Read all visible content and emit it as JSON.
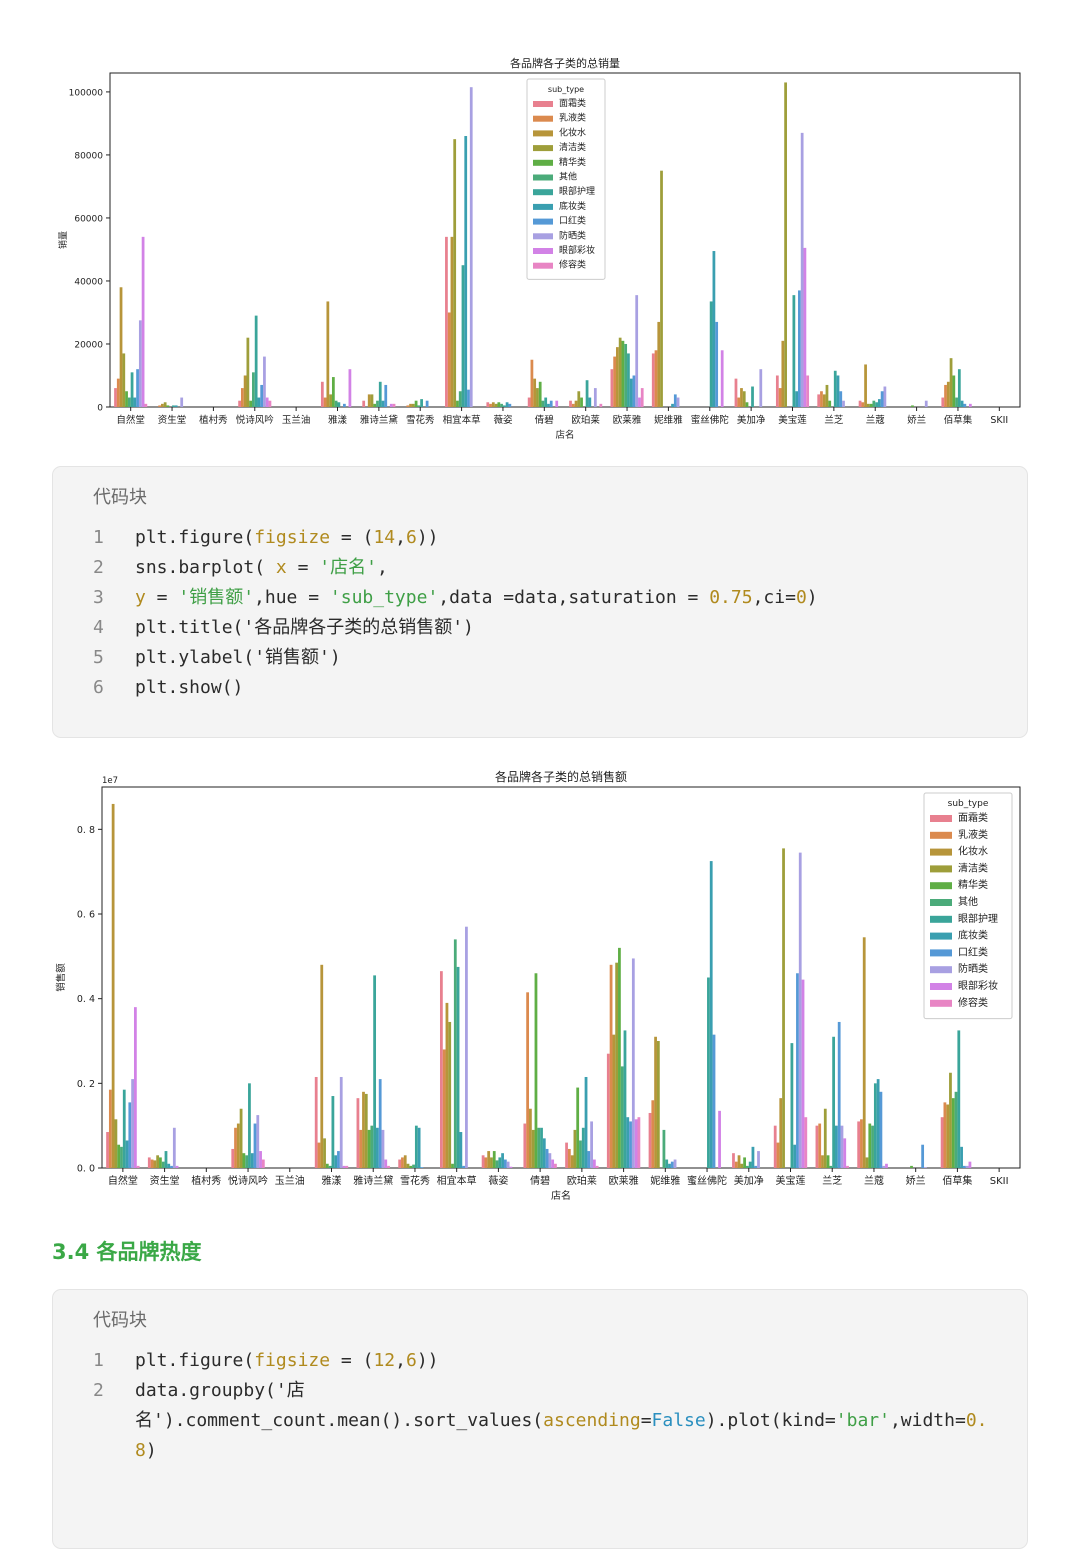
{
  "chart_data": [
    {
      "type": "bar",
      "title": "各品牌各子类的总销量",
      "xlabel": "店名",
      "ylabel": "销量",
      "ylim": [
        0,
        106000
      ],
      "yticks": [
        0,
        20000,
        40000,
        60000,
        80000,
        100000
      ],
      "ytick_labels": [
        "0",
        "20000",
        "40000",
        "60000",
        "80000",
        "100000"
      ],
      "scale_label": "",
      "legend_title": "sub_type",
      "legend_position": "top-center",
      "categories": [
        "自然堂",
        "资生堂",
        "植村秀",
        "悦诗风吟",
        "玉兰油",
        "雅漾",
        "雅诗兰黛",
        "雪花秀",
        "相宜本草",
        "薇姿",
        "倩碧",
        "欧珀莱",
        "欧莱雅",
        "妮维雅",
        "蜜丝佛陀",
        "美加净",
        "美宝莲",
        "兰芝",
        "兰蔻",
        "娇兰",
        "佰草集",
        "SKII"
      ],
      "series": [
        {
          "name": "面霜类",
          "color": "#e8808f",
          "values": [
            6000,
            0,
            0,
            2000,
            0,
            8000,
            2000,
            0,
            54000,
            1500,
            3000,
            2000,
            12000,
            17000,
            0,
            9000,
            10000,
            4000,
            2000,
            0,
            3000,
            0
          ]
        },
        {
          "name": "乳液类",
          "color": "#db8a4e",
          "values": [
            9000,
            500,
            0,
            6000,
            0,
            3000,
            0,
            500,
            30000,
            1000,
            15000,
            1000,
            16000,
            18000,
            0,
            3000,
            6000,
            5000,
            1500,
            0,
            7000,
            0
          ]
        },
        {
          "name": "化妆水",
          "color": "#b7953a",
          "values": [
            38000,
            1000,
            0,
            10000,
            0,
            33500,
            4000,
            1000,
            54000,
            1500,
            9000,
            2000,
            19000,
            27000,
            0,
            6000,
            21000,
            4000,
            13500,
            0,
            8000,
            0
          ]
        },
        {
          "name": "清洁类",
          "color": "#9e9e3a",
          "values": [
            17000,
            1500,
            0,
            22000,
            0,
            4000,
            4000,
            1000,
            85000,
            1000,
            6000,
            5000,
            22000,
            75000,
            0,
            5000,
            103000,
            7000,
            1000,
            0,
            15500,
            0
          ]
        },
        {
          "name": "精华类",
          "color": "#5fae45",
          "values": [
            5000,
            500,
            0,
            2000,
            0,
            9500,
            1000,
            2000,
            2000,
            1500,
            8000,
            3000,
            21000,
            0,
            0,
            1500,
            0,
            2000,
            1000,
            500,
            10000,
            0
          ]
        },
        {
          "name": "其他",
          "color": "#4bab7a",
          "values": [
            3000,
            0,
            0,
            11000,
            0,
            2000,
            2000,
            500,
            5000,
            1000,
            2000,
            0,
            20000,
            0,
            0,
            0,
            0,
            0,
            2000,
            0,
            3000,
            0
          ]
        },
        {
          "name": "眼部护理",
          "color": "#3aa59a",
          "values": [
            11000,
            500,
            0,
            29000,
            0,
            1500,
            8000,
            2500,
            45000,
            500,
            3000,
            8500,
            17000,
            0,
            33500,
            6500,
            35500,
            11500,
            1500,
            0,
            12000,
            0
          ]
        },
        {
          "name": "底妆类",
          "color": "#3a9fb0",
          "values": [
            3000,
            500,
            0,
            3000,
            0,
            0,
            2000,
            0,
            86000,
            1500,
            1000,
            3000,
            9000,
            1000,
            49500,
            0,
            5000,
            10000,
            2500,
            0,
            2000,
            0
          ]
        },
        {
          "name": "口红类",
          "color": "#5599d6",
          "values": [
            12000,
            0,
            0,
            7000,
            0,
            1000,
            7000,
            2000,
            5500,
            1000,
            2000,
            0,
            10000,
            4000,
            27000,
            0,
            37000,
            5000,
            5000,
            0,
            1000,
            0
          ]
        },
        {
          "name": "防晒类",
          "color": "#a8a0e2",
          "values": [
            27500,
            3000,
            0,
            16000,
            0,
            0,
            0,
            0,
            101500,
            0,
            0,
            6000,
            35500,
            3000,
            0,
            12000,
            87000,
            2000,
            6500,
            2000,
            0,
            0
          ]
        },
        {
          "name": "眼部彩妆",
          "color": "#d282e6",
          "values": [
            54000,
            0,
            0,
            3000,
            0,
            12000,
            1000,
            0,
            0,
            0,
            2000,
            0,
            3000,
            0,
            18000,
            0,
            50500,
            0,
            0,
            0,
            1000,
            0
          ]
        },
        {
          "name": "修容类",
          "color": "#e885c4",
          "values": [
            1000,
            0,
            0,
            2000,
            0,
            0,
            1000,
            0,
            0,
            0,
            0,
            1000,
            6000,
            0,
            0,
            0,
            10000,
            0,
            0,
            0,
            0,
            0
          ]
        }
      ]
    },
    {
      "type": "bar",
      "title": "各品牌各子类的总销售额",
      "xlabel": "店名",
      "ylabel": "销售额",
      "ylim": [
        0,
        0.9
      ],
      "yticks": [
        0,
        0.2,
        0.4,
        0.6,
        0.8
      ],
      "ytick_labels": [
        "0. 0",
        "0. 2",
        "0. 4",
        "0. 6",
        "0. 8"
      ],
      "scale_label": "1e7",
      "legend_title": "sub_type",
      "legend_position": "top-right",
      "categories": [
        "自然堂",
        "资生堂",
        "植村秀",
        "悦诗风吟",
        "玉兰油",
        "雅漾",
        "雅诗兰黛",
        "雪花秀",
        "相宜本草",
        "薇姿",
        "倩碧",
        "欧珀莱",
        "欧莱雅",
        "妮维雅",
        "蜜丝佛陀",
        "美加净",
        "美宝莲",
        "兰芝",
        "兰蔻",
        "娇兰",
        "佰草集",
        "SKII"
      ],
      "series": [
        {
          "name": "面霜类",
          "color": "#e8808f",
          "values": [
            0.085,
            0.025,
            0,
            0.045,
            0,
            0.215,
            0.165,
            0.02,
            0.465,
            0.03,
            0.105,
            0.06,
            0.27,
            0.13,
            0,
            0.035,
            0.1,
            0.1,
            0.11,
            0,
            0.12,
            0
          ]
        },
        {
          "name": "乳液类",
          "color": "#db8a4e",
          "values": [
            0.185,
            0.02,
            0,
            0.095,
            0,
            0.06,
            0.09,
            0.025,
            0.28,
            0.025,
            0.415,
            0.045,
            0.48,
            0.16,
            0,
            0.015,
            0.06,
            0.105,
            0.115,
            0,
            0.155,
            0
          ]
        },
        {
          "name": "化妆水",
          "color": "#b7953a",
          "values": [
            0.86,
            0.018,
            0,
            0.105,
            0,
            0.48,
            0.18,
            0.03,
            0.39,
            0.04,
            0.14,
            0.03,
            0.315,
            0.31,
            0,
            0.03,
            0.165,
            0.03,
            0.545,
            0,
            0.15,
            0
          ]
        },
        {
          "name": "清洁类",
          "color": "#9e9e3a",
          "values": [
            0.115,
            0.03,
            0,
            0.14,
            0,
            0.07,
            0.175,
            0.01,
            0.345,
            0.025,
            0.09,
            0.09,
            0.485,
            0.3,
            0,
            0.01,
            0.755,
            0.14,
            0.025,
            0,
            0.225,
            0
          ]
        },
        {
          "name": "精华类",
          "color": "#5fae45",
          "values": [
            0.055,
            0.025,
            0,
            0.035,
            0,
            0.01,
            0.09,
            0.005,
            0.01,
            0.04,
            0.46,
            0.19,
            0.52,
            0,
            0,
            0.025,
            0,
            0.03,
            0.105,
            0.005,
            0.165,
            0
          ]
        },
        {
          "name": "其他",
          "color": "#4bab7a",
          "values": [
            0.05,
            0.015,
            0,
            0.03,
            0,
            0.005,
            0.1,
            0.008,
            0.54,
            0.018,
            0.095,
            0.065,
            0.24,
            0.09,
            0,
            0.005,
            0,
            0.005,
            0.1,
            0,
            0.18,
            0
          ]
        },
        {
          "name": "眼部护理",
          "color": "#3aa59a",
          "values": [
            0.185,
            0.04,
            0,
            0.2,
            0,
            0.17,
            0.455,
            0.1,
            0.475,
            0.025,
            0.095,
            0.095,
            0.325,
            0.02,
            0.45,
            0.015,
            0.295,
            0.31,
            0.2,
            0,
            0.325,
            0
          ]
        },
        {
          "name": "底妆类",
          "color": "#3a9fb0",
          "values": [
            0.065,
            0.01,
            0,
            0.035,
            0,
            0.03,
            0.095,
            0.095,
            0.085,
            0.035,
            0.07,
            0.215,
            0.12,
            0.01,
            0.725,
            0.05,
            0.055,
            0.1,
            0.21,
            0,
            0.05,
            0
          ]
        },
        {
          "name": "口红类",
          "color": "#5599d6",
          "values": [
            0.155,
            0.005,
            0,
            0.105,
            0,
            0.04,
            0.21,
            0.002,
            0.005,
            0.02,
            0.045,
            0.04,
            0.11,
            0.015,
            0.315,
            0.005,
            0.46,
            0.345,
            0.18,
            0.055,
            0.005,
            0
          ]
        },
        {
          "name": "防晒类",
          "color": "#a8a0e2",
          "values": [
            0.21,
            0.095,
            0,
            0.125,
            0,
            0.215,
            0.09,
            0,
            0.57,
            0.015,
            0.035,
            0.11,
            0.495,
            0.02,
            0,
            0.04,
            0.745,
            0.1,
            0.005,
            0.002,
            0.005,
            0
          ]
        },
        {
          "name": "眼部彩妆",
          "color": "#d282e6",
          "values": [
            0.38,
            0.005,
            0,
            0.04,
            0,
            0.005,
            0.02,
            0,
            0,
            0.003,
            0.02,
            0.02,
            0.115,
            0,
            0.135,
            0,
            0.445,
            0.07,
            0.01,
            0,
            0.015,
            0
          ]
        },
        {
          "name": "修容类",
          "color": "#e885c4",
          "values": [
            0.005,
            0,
            0,
            0.02,
            0,
            0.005,
            0.005,
            0,
            0,
            0,
            0.01,
            0.005,
            0.12,
            0,
            0,
            0,
            0.12,
            0.005,
            0,
            0,
            0,
            0
          ]
        }
      ]
    }
  ],
  "code_blocks": [
    {
      "header": "代码块",
      "lines": [
        {
          "num": "1",
          "tokens": [
            [
              "plt.figure(",
              "plain"
            ],
            [
              "figsize",
              "kw"
            ],
            [
              " = (",
              "plain"
            ],
            [
              "14",
              "num"
            ],
            [
              ",",
              "plain"
            ],
            [
              "6",
              "num"
            ],
            [
              "))",
              "plain"
            ]
          ]
        },
        {
          "num": "2",
          "tokens": [
            [
              "sns.barplot( ",
              "plain"
            ],
            [
              "x",
              "kw"
            ],
            [
              " = ",
              "plain"
            ],
            [
              "'店名'",
              "str"
            ],
            [
              ",",
              "plain"
            ]
          ]
        },
        {
          "num": "3",
          "tokens": [
            [
              "y",
              "kw"
            ],
            [
              " = ",
              "plain"
            ],
            [
              "'销售额'",
              "str"
            ],
            [
              ",hue = ",
              "plain"
            ],
            [
              "'sub_type'",
              "str"
            ],
            [
              ",data =data,saturation = ",
              "plain"
            ],
            [
              "0.75",
              "num"
            ],
            [
              ",ci=",
              "plain"
            ],
            [
              "0",
              "num"
            ],
            [
              ")",
              "plain"
            ]
          ]
        },
        {
          "num": "4",
          "tokens": [
            [
              "plt.title('各品牌各子类的总销售额')",
              "plain"
            ]
          ]
        },
        {
          "num": "5",
          "tokens": [
            [
              "plt.ylabel('销售额')",
              "plain"
            ]
          ]
        },
        {
          "num": "6",
          "tokens": [
            [
              "plt.show()",
              "plain"
            ]
          ]
        }
      ]
    },
    {
      "header": "代码块",
      "lines": [
        {
          "num": "1",
          "tokens": [
            [
              "plt.figure(",
              "plain"
            ],
            [
              "figsize",
              "kw"
            ],
            [
              " = (",
              "plain"
            ],
            [
              "12",
              "num"
            ],
            [
              ",",
              "plain"
            ],
            [
              "6",
              "num"
            ],
            [
              "))",
              "plain"
            ]
          ]
        },
        {
          "num": "2",
          "tokens": [
            [
              "data.groupby('店",
              "plain"
            ]
          ]
        },
        {
          "num": "",
          "tokens": [
            [
              "名').comment_count.mean().sort_values(",
              "plain"
            ],
            [
              "ascending",
              "kw"
            ],
            [
              "=",
              "plain"
            ],
            [
              "False",
              "bool"
            ],
            [
              ").plot(kind=",
              "plain"
            ],
            [
              "'bar'",
              "str"
            ],
            [
              ",width=",
              "plain"
            ],
            [
              "0.",
              "num"
            ]
          ]
        },
        {
          "num": "",
          "tokens": [
            [
              "8",
              "num"
            ],
            [
              ")",
              "plain"
            ]
          ]
        }
      ]
    }
  ],
  "section_title": "3.4 各品牌热度"
}
